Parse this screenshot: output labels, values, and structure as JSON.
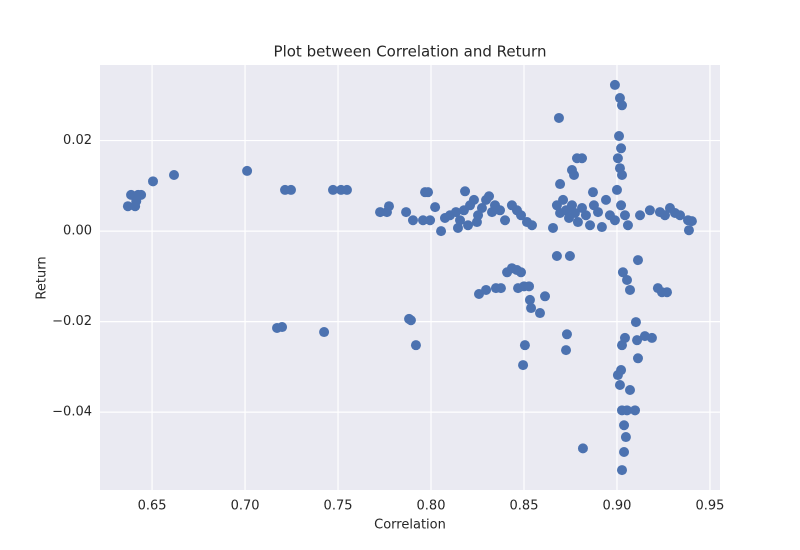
{
  "chart_data": {
    "type": "scatter",
    "title": "Plot between Correlation and Return",
    "x_label": "Correlation",
    "y_label": "Return",
    "color": "#4c72b0",
    "grid": true,
    "xlim": [
      0.622,
      0.9554
    ],
    "ylim": [
      -0.0572,
      0.0367
    ],
    "xticks": [
      0.65,
      {
        "value": 0.7,
        "label": "0.70"
      },
      0.75,
      {
        "value": 0.8,
        "label": "0.80"
      },
      0.85,
      {
        "value": 0.9,
        "label": "0.90"
      },
      0.95
    ],
    "yticks": [
      {
        "value": -0.04,
        "label": "−0.04"
      },
      {
        "value": -0.02,
        "label": "−0.02"
      },
      {
        "value": 0,
        "label": "0.00"
      },
      0.02
    ],
    "x": [
      0.637,
      0.6387,
      0.6409,
      0.6425,
      0.6441,
      0.6415,
      0.6505,
      0.6618,
      0.7011,
      0.7215,
      0.7247,
      0.7172,
      0.7199,
      0.7425,
      0.7473,
      0.7516,
      0.7548,
      0.7726,
      0.7763,
      0.7774,
      0.7866,
      0.7892,
      0.7882,
      0.7919,
      0.7903,
      0.7957,
      0.7995,
      0.7968,
      0.7984,
      0.8022,
      0.8054,
      0.8075,
      0.8102,
      0.8134,
      0.8156,
      0.8177,
      0.821,
      0.8231,
      0.8253,
      0.8274,
      0.8296,
      0.8312,
      0.8328,
      0.8344,
      0.8371,
      0.8398,
      0.8435,
      0.8462,
      0.8484,
      0.8516,
      0.8543,
      0.8183,
      0.8145,
      0.8247,
      0.8199,
      0.8258,
      0.8349,
      0.8376,
      0.8409,
      0.8435,
      0.8462,
      0.8484,
      0.8468,
      0.85,
      0.8527,
      0.8532,
      0.8538,
      0.8586,
      0.8613,
      0.8505,
      0.8495,
      0.8296,
      0.8656,
      0.8677,
      0.8694,
      0.871,
      0.8726,
      0.8742,
      0.8758,
      0.8774,
      0.879,
      0.8812,
      0.8833,
      0.8855,
      0.8876,
      0.8898,
      0.8919,
      0.8941,
      0.8962,
      0.8694,
      0.8769,
      0.8785,
      0.8812,
      0.8758,
      0.8688,
      0.8871,
      0.8747,
      0.8677,
      0.8731,
      0.8726,
      0.8817,
      0.8989,
      0.9016,
      0.9027,
      0.9011,
      0.9022,
      0.9005,
      0.9016,
      0.9027,
      0.9,
      0.9022,
      0.8989,
      0.9043,
      0.9059,
      0.9032,
      0.9054,
      0.907,
      0.9043,
      0.9027,
      0.9005,
      0.9016,
      0.9027,
      0.9054,
      0.9038,
      0.9048,
      0.9038,
      0.9027,
      0.9097,
      0.9102,
      0.9108,
      0.9113,
      0.9113,
      0.907,
      0.9124,
      0.9177,
      0.9231,
      0.9258,
      0.9285,
      0.9312,
      0.9339,
      0.9382,
      0.9387,
      0.9403,
      0.915,
      0.9188,
      0.922,
      0.9242,
      0.9269,
      0.9022
    ],
    "values": [
      0.0055,
      0.008,
      0.0055,
      0.008,
      0.008,
      0.0066,
      0.011,
      0.0124,
      0.0133,
      0.0091,
      0.0091,
      -0.0214,
      -0.0212,
      -0.0223,
      0.0091,
      0.0091,
      0.0091,
      0.0042,
      0.0042,
      0.0055,
      0.0042,
      -0.0197,
      -0.0194,
      -0.0252,
      0.0024,
      0.0024,
      0.0024,
      0.0086,
      0.0086,
      0.0053,
      0.0,
      0.0029,
      0.0035,
      0.0042,
      0.0024,
      0.0046,
      0.0057,
      0.0069,
      0.0035,
      0.0051,
      0.0069,
      0.0077,
      0.0042,
      0.0057,
      0.0046,
      0.0024,
      0.0057,
      0.0046,
      0.0035,
      0.002,
      0.0013,
      0.0088,
      0.0007,
      0.002,
      0.0013,
      -0.0139,
      -0.0126,
      -0.0126,
      -0.0091,
      -0.0082,
      -0.0086,
      -0.0091,
      -0.0126,
      -0.0122,
      -0.0122,
      -0.0152,
      -0.017,
      -0.0181,
      -0.0144,
      -0.0252,
      -0.0296,
      -0.013,
      0.0007,
      0.0057,
      0.004,
      0.0069,
      0.0046,
      0.0029,
      0.0057,
      0.004,
      0.002,
      0.0051,
      0.0035,
      0.0013,
      0.0057,
      0.0042,
      0.0009,
      0.0069,
      0.0035,
      0.0104,
      0.0124,
      0.0161,
      0.0161,
      0.0135,
      0.025,
      0.0086,
      -0.0055,
      -0.0055,
      -0.0228,
      -0.0263,
      -0.048,
      0.0323,
      0.0294,
      0.0278,
      0.021,
      0.0183,
      0.0161,
      0.0139,
      0.0124,
      0.0091,
      0.0057,
      0.0024,
      0.0035,
      0.0013,
      -0.0091,
      -0.0108,
      -0.013,
      -0.0236,
      -0.0252,
      -0.0318,
      -0.034,
      -0.0396,
      -0.0396,
      -0.0429,
      -0.0455,
      -0.0488,
      -0.0528,
      -0.0396,
      -0.0201,
      -0.0241,
      -0.0281,
      -0.0064,
      -0.0351,
      0.0035,
      0.0046,
      0.0042,
      0.0035,
      0.0051,
      0.004,
      0.0035,
      0.0024,
      0.0002,
      0.0022,
      -0.0232,
      -0.0236,
      -0.0126,
      -0.0135,
      -0.0135,
      -0.0307
    ]
  }
}
